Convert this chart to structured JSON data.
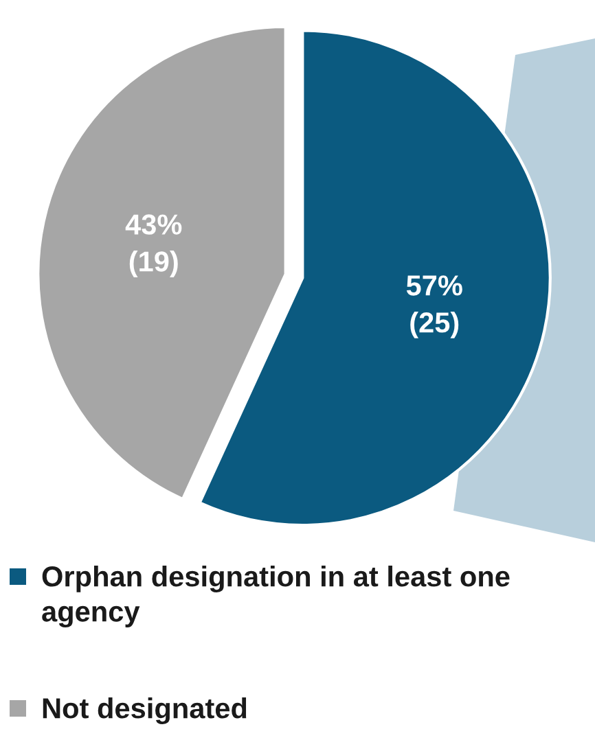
{
  "chart_data": {
    "type": "pie",
    "categories": [
      "Orphan designation in at least one agency",
      "Not designated"
    ],
    "values": [
      25,
      19
    ],
    "colors": [
      "#0b5a80",
      "#a6a6a6"
    ],
    "value_labels": [
      "57%\n(25)",
      "43%\n(19)"
    ],
    "legend": "bottom"
  }
}
